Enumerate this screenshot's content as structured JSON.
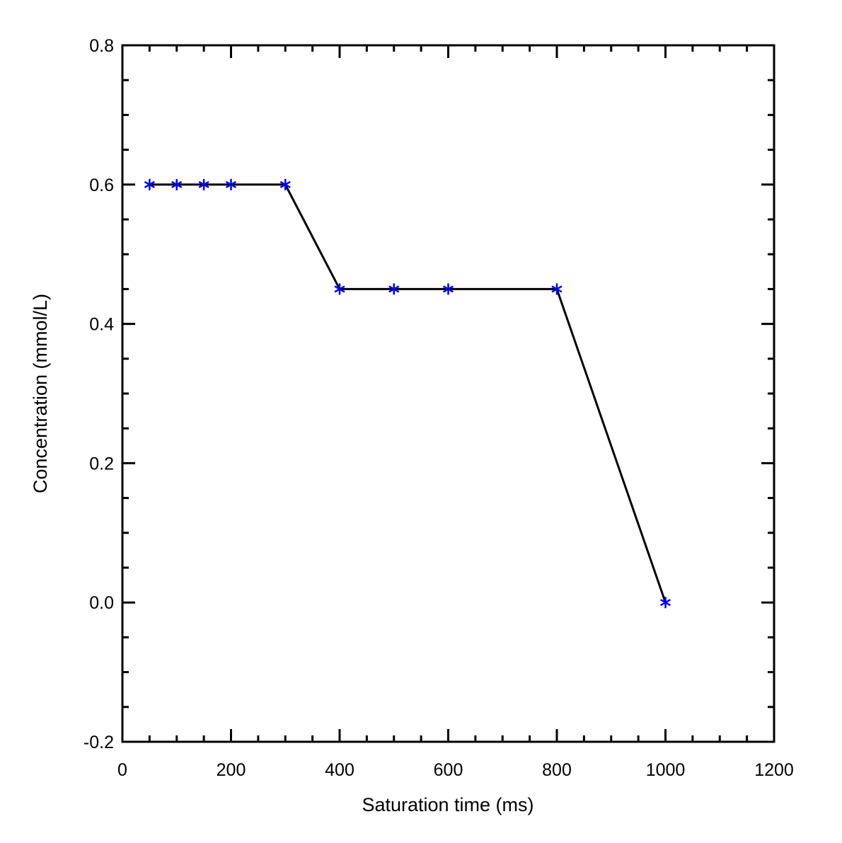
{
  "chart_data": {
    "type": "line",
    "title": "",
    "xlabel": "Saturation time (ms)",
    "ylabel": "Concentration (mmol/L)",
    "xlim": [
      0,
      1200
    ],
    "ylim": [
      -0.2,
      0.8
    ],
    "x_ticks": [
      0,
      200,
      400,
      600,
      800,
      1000,
      1200
    ],
    "x_tick_labels": [
      "0",
      "200",
      "400",
      "600",
      "800",
      "1000",
      "1200"
    ],
    "y_ticks": [
      -0.2,
      0.0,
      0.2,
      0.4,
      0.6,
      0.8
    ],
    "y_tick_labels": [
      "-0.2",
      "0.0",
      "0.2",
      "0.4",
      "0.6",
      "0.8"
    ],
    "grid": false,
    "line_color": "#000000",
    "marker_color": "#0000ff",
    "marker": "asterisk",
    "x": [
      50,
      100,
      150,
      200,
      300,
      400,
      500,
      600,
      800,
      1000
    ],
    "y": [
      0.6,
      0.6,
      0.6,
      0.6,
      0.6,
      0.45,
      0.45,
      0.45,
      0.45,
      0.0
    ]
  }
}
